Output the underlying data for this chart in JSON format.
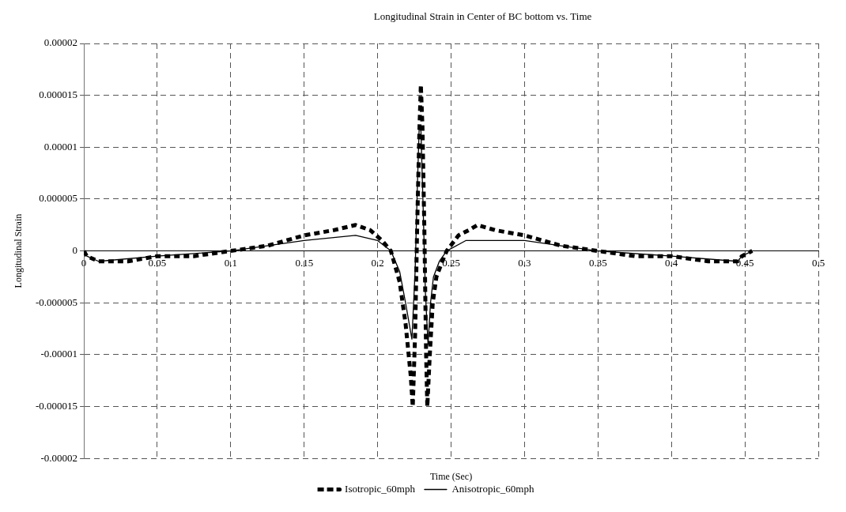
{
  "chart_data": {
    "type": "line",
    "title": "Longitudinal Strain in Center of BC bottom vs. Time",
    "xlabel": "Time (Sec)",
    "ylabel": "Longitudinal Strain",
    "xlim": [
      0,
      0.5
    ],
    "xticks": [
      0,
      0.05,
      0.1,
      0.15,
      0.2,
      0.25,
      0.3,
      0.35,
      0.4,
      0.45,
      0.5
    ],
    "ylim": [
      -2e-05,
      2e-05
    ],
    "yticks": [
      {
        "value": -2e-05,
        "label": "-0.00002"
      },
      {
        "value": -1.5e-05,
        "label": "-0.000015"
      },
      {
        "value": -1e-05,
        "label": "-0.00001"
      },
      {
        "value": -5e-06,
        "label": "-0.000005"
      },
      {
        "value": 0,
        "label": "0"
      },
      {
        "value": 5e-06,
        "label": "0.000005"
      },
      {
        "value": 1e-05,
        "label": "0.00001"
      },
      {
        "value": 1.5e-05,
        "label": "0.000015"
      },
      {
        "value": 2e-05,
        "label": "0.00002"
      }
    ],
    "grid": true,
    "legend": "bottom",
    "marker": "none",
    "series": [
      {
        "name": "Isotropic_60mph",
        "color": "#000000",
        "line_style": "dashed",
        "x": [
          0,
          0.002,
          0.01,
          0.03,
          0.05,
          0.075,
          0.1,
          0.125,
          0.15,
          0.17,
          0.185,
          0.195,
          0.203,
          0.209,
          0.215,
          0.219,
          0.2225,
          0.2239,
          0.2255,
          0.227,
          0.2285,
          0.2294,
          0.2305,
          0.2318,
          0.233,
          0.2338,
          0.2355,
          0.2375,
          0.24,
          0.244,
          0.247,
          0.255,
          0.262,
          0.268,
          0.28,
          0.3,
          0.325,
          0.35,
          0.375,
          0.4,
          0.425,
          0.445,
          0.448,
          0.455
        ],
        "values": [
          0,
          -5e-07,
          -1e-06,
          -1e-06,
          -5e-07,
          -5e-07,
          0,
          5e-07,
          1.5e-06,
          2e-06,
          2.5e-06,
          2e-06,
          1e-06,
          0,
          -3e-06,
          -7e-06,
          -1.2e-05,
          -1.5e-05,
          -8e-06,
          3e-06,
          1.2e-05,
          1.6e-05,
          1.2e-05,
          2e-06,
          -1e-05,
          -1.5e-05,
          -1e-05,
          -5e-06,
          -2.5e-06,
          -1e-06,
          0,
          1.5e-06,
          2e-06,
          2.5e-06,
          2e-06,
          1.5e-06,
          5e-07,
          0,
          -5e-07,
          -5e-07,
          -1e-06,
          -1e-06,
          -5e-07,
          0
        ]
      },
      {
        "name": "Anisotropic_60mph",
        "color": "#000000",
        "line_style": "solid",
        "x": [
          0,
          0.002,
          0.01,
          0.05,
          0.1,
          0.15,
          0.185,
          0.2,
          0.209,
          0.215,
          0.219,
          0.2233,
          0.2255,
          0.227,
          0.2283,
          0.2295,
          0.231,
          0.2325,
          0.2343,
          0.236,
          0.238,
          0.242,
          0.247,
          0.26,
          0.279,
          0.3,
          0.325,
          0.35,
          0.4,
          0.445,
          0.448,
          0.455
        ],
        "values": [
          0,
          -5e-07,
          -1e-06,
          -5e-07,
          0,
          1e-06,
          1.5e-06,
          1e-06,
          0,
          -2e-06,
          -5e-06,
          -8.5e-06,
          -2e-06,
          6e-06,
          1.2e-05,
          1.15e-05,
          4e-06,
          -4e-06,
          -9e-06,
          -5e-06,
          -2.5e-06,
          -1e-06,
          0,
          1e-06,
          1e-06,
          1e-06,
          5e-07,
          0,
          -5e-07,
          -1e-06,
          -5e-07,
          0
        ]
      }
    ]
  }
}
